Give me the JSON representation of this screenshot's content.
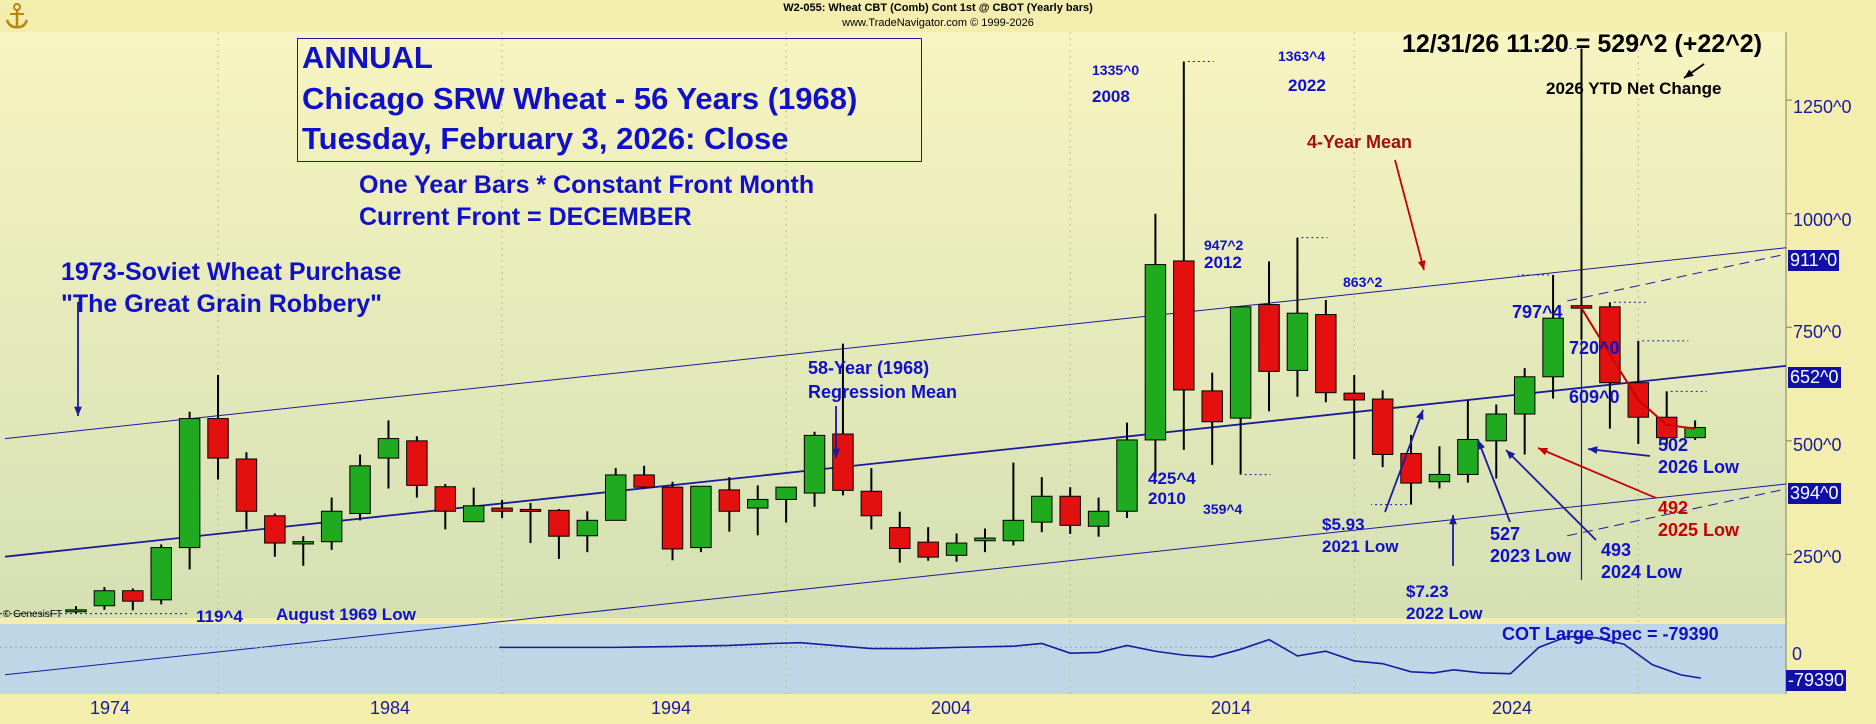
{
  "header": {
    "title": "W2-055: Wheat CBT (Comb) Cont 1st @ CBOT (Yearly bars)",
    "credit": "www.TradeNavigator.com © 1999-2026"
  },
  "title_box": {
    "line1": "ANNUAL",
    "line2": "Chicago SRW Wheat - 56 Years (1968)",
    "line3": "Tuesday, February 3, 2026: Close"
  },
  "subtitle": {
    "line1": "One Year Bars * Constant Front Month",
    "line2": "Current Front = DECEMBER"
  },
  "annotations": {
    "soviet1": "1973-Soviet Wheat Purchase",
    "soviet2": "\"The Great Grain Robbery\"",
    "reg1": "58-Year (1968)",
    "reg2": "Regression Mean",
    "last_quote": "12/31/26 11:20 = 529^2 (+22^2)",
    "ytd": "2026 YTD Net Change",
    "mean4": "4-Year Mean",
    "h2008": "1335^0",
    "h2008y": "2008",
    "h2022": "1363^4",
    "h2022y": "2022",
    "h2012": "947^2",
    "h2012y": "2012",
    "h8632": "863^2",
    "h7974": "797^4",
    "l425": "425^4",
    "l2010": "2010",
    "l359": "359^4",
    "l593": "$5.93",
    "l593y": "2021 Low",
    "l723": "$7.23",
    "l723y": "2022 Low",
    "l527": "527",
    "l527y": "2023 Low",
    "l493": "493",
    "l493y": "2024 Low",
    "l492": "492",
    "l492y": "2025 Low",
    "l502": "502",
    "l502y": "2026 Low",
    "v720": "720^0",
    "v609": "609^0",
    "l119": "119^4",
    "aug69": "August 1969 Low",
    "cot": "COT Large Spec = -79390",
    "copyright": "© GenesisFT"
  },
  "axis": {
    "y_ticks": [
      "1250^0",
      "1000^0",
      "750^0",
      "500^0",
      "250^0"
    ],
    "y_tick_values": [
      1250,
      1000,
      750,
      500,
      250
    ],
    "tags": [
      "911^0",
      "652^0",
      "394^0"
    ],
    "tag_values": [
      911,
      652,
      394
    ],
    "x_ticks": [
      "1974",
      "1984",
      "1994",
      "2004",
      "2014",
      "2024"
    ],
    "x_tick_values": [
      1974,
      1984,
      1994,
      2004,
      2014,
      2024
    ],
    "cot_zero": "0",
    "cot_tag": "-79390"
  },
  "colors": {
    "background": "#f3eeae",
    "up": "#1faa1f",
    "down": "#e41010",
    "line": "#1a1a9e",
    "mean4": "#c80000",
    "panel": "#bfd6e6"
  },
  "chart_data": [
    {
      "type": "candlestick",
      "title": "ANNUAL Chicago SRW Wheat - 56 Years (1968)",
      "xlabel": "",
      "ylabel": "",
      "ylim": [
        110,
        1400
      ],
      "xlim": [
        1966.5,
        2029.2
      ],
      "bars": [
        {
          "year": 1969,
          "o": 128,
          "h": 136,
          "l": 119.5,
          "c": 128
        },
        {
          "year": 1970,
          "o": 137,
          "h": 178,
          "l": 128,
          "c": 170
        },
        {
          "year": 1971,
          "o": 170,
          "h": 175,
          "l": 127,
          "c": 147
        },
        {
          "year": 1972,
          "o": 150,
          "h": 272,
          "l": 140,
          "c": 265
        },
        {
          "year": 1973,
          "o": 265,
          "h": 564,
          "l": 217,
          "c": 549
        },
        {
          "year": 1974,
          "o": 549,
          "h": 645,
          "l": 415,
          "c": 462
        },
        {
          "year": 1975,
          "o": 460,
          "h": 475,
          "l": 305,
          "c": 345
        },
        {
          "year": 1976,
          "o": 335,
          "h": 340,
          "l": 245,
          "c": 275
        },
        {
          "year": 1977,
          "o": 273,
          "h": 290,
          "l": 225,
          "c": 278
        },
        {
          "year": 1978,
          "o": 278,
          "h": 375,
          "l": 260,
          "c": 345
        },
        {
          "year": 1979,
          "o": 340,
          "h": 470,
          "l": 325,
          "c": 445
        },
        {
          "year": 1980,
          "o": 462,
          "h": 545,
          "l": 395,
          "c": 505
        },
        {
          "year": 1981,
          "o": 500,
          "h": 510,
          "l": 375,
          "c": 402
        },
        {
          "year": 1982,
          "o": 399,
          "h": 405,
          "l": 305,
          "c": 345
        },
        {
          "year": 1983,
          "o": 322,
          "h": 397,
          "l": 325,
          "c": 357
        },
        {
          "year": 1984,
          "o": 352,
          "h": 370,
          "l": 330,
          "c": 345
        },
        {
          "year": 1985,
          "o": 349,
          "h": 363,
          "l": 275,
          "c": 348
        },
        {
          "year": 1986,
          "o": 347,
          "h": 350,
          "l": 240,
          "c": 290
        },
        {
          "year": 1987,
          "o": 291,
          "h": 345,
          "l": 255,
          "c": 325
        },
        {
          "year": 1988,
          "o": 325,
          "h": 440,
          "l": 330,
          "c": 425
        },
        {
          "year": 1989,
          "o": 425,
          "h": 445,
          "l": 395,
          "c": 398
        },
        {
          "year": 1990,
          "o": 398,
          "h": 410,
          "l": 237,
          "c": 262
        },
        {
          "year": 1991,
          "o": 265,
          "h": 400,
          "l": 255,
          "c": 400
        },
        {
          "year": 1992,
          "o": 392,
          "h": 420,
          "l": 300,
          "c": 345
        },
        {
          "year": 1993,
          "o": 352,
          "h": 402,
          "l": 292,
          "c": 371
        },
        {
          "year": 1994,
          "o": 371,
          "h": 395,
          "l": 320,
          "c": 398
        },
        {
          "year": 1995,
          "o": 385,
          "h": 520,
          "l": 355,
          "c": 512
        },
        {
          "year": 1996,
          "o": 515,
          "h": 714,
          "l": 380,
          "c": 391
        },
        {
          "year": 1997,
          "o": 389,
          "h": 440,
          "l": 305,
          "c": 335
        },
        {
          "year": 1998,
          "o": 309,
          "h": 344,
          "l": 232,
          "c": 263
        },
        {
          "year": 1999,
          "o": 277,
          "h": 310,
          "l": 236,
          "c": 244
        },
        {
          "year": 2000,
          "o": 248,
          "h": 296,
          "l": 234,
          "c": 275
        },
        {
          "year": 2001,
          "o": 280,
          "h": 307,
          "l": 255,
          "c": 286
        },
        {
          "year": 2002,
          "o": 280,
          "h": 452,
          "l": 270,
          "c": 325
        },
        {
          "year": 2003,
          "o": 321,
          "h": 420,
          "l": 299,
          "c": 378
        },
        {
          "year": 2004,
          "o": 378,
          "h": 398,
          "l": 295,
          "c": 314
        },
        {
          "year": 2005,
          "o": 312,
          "h": 375,
          "l": 289,
          "c": 345
        },
        {
          "year": 2006,
          "o": 345,
          "h": 540,
          "l": 330,
          "c": 502
        },
        {
          "year": 2007,
          "o": 502,
          "h": 1000,
          "l": 420,
          "c": 888
        },
        {
          "year": 2008,
          "o": 896,
          "h": 1335,
          "l": 480,
          "c": 612
        },
        {
          "year": 2009,
          "o": 610,
          "h": 650,
          "l": 447,
          "c": 542
        },
        {
          "year": 2010,
          "o": 550,
          "h": 790,
          "l": 425.5,
          "c": 795
        },
        {
          "year": 2011,
          "o": 800,
          "h": 895,
          "l": 565,
          "c": 653
        },
        {
          "year": 2012,
          "o": 655,
          "h": 947.25,
          "l": 597,
          "c": 781
        },
        {
          "year": 2013,
          "o": 778,
          "h": 810,
          "l": 585,
          "c": 606
        },
        {
          "year": 2014,
          "o": 605,
          "h": 645,
          "l": 460,
          "c": 590
        },
        {
          "year": 2015,
          "o": 592,
          "h": 611,
          "l": 442,
          "c": 470
        },
        {
          "year": 2016,
          "o": 472,
          "h": 513,
          "l": 359.5,
          "c": 407
        },
        {
          "year": 2017,
          "o": 410,
          "h": 488,
          "l": 395,
          "c": 426
        },
        {
          "year": 2018,
          "o": 426,
          "h": 590,
          "l": 408,
          "c": 503
        },
        {
          "year": 2019,
          "o": 500,
          "h": 580,
          "l": 417,
          "c": 559
        },
        {
          "year": 2020,
          "o": 559,
          "h": 660,
          "l": 470,
          "c": 641
        },
        {
          "year": 2021,
          "o": 641,
          "h": 865,
          "l": 593,
          "c": 770
        },
        {
          "year": 2022,
          "o": 797.5,
          "h": 1363.5,
          "l": 723,
          "c": 792
        },
        {
          "year": 2023,
          "o": 795,
          "h": 805,
          "l": 527,
          "c": 628
        },
        {
          "year": 2024,
          "o": 628,
          "h": 720,
          "l": 493,
          "c": 552
        },
        {
          "year": 2025,
          "o": 552,
          "h": 609,
          "l": 492,
          "c": 507
        },
        {
          "year": 2026,
          "o": 507,
          "h": 545,
          "l": 502,
          "c": 529.25
        }
      ],
      "regression_channel": {
        "center": [
          {
            "year": 1966.5,
            "value": 245
          },
          {
            "year": 2029.2,
            "value": 665
          }
        ],
        "inner_upper": [
          {
            "year": 1966.5,
            "value": 505
          },
          {
            "year": 2029.2,
            "value": 925
          }
        ],
        "inner_lower": [
          {
            "year": 1966.5,
            "value": -15
          },
          {
            "year": 2029.2,
            "value": 405
          }
        ],
        "outer_upper": [
          {
            "year": 2021.5,
            "value": 808
          },
          {
            "year": 2029.2,
            "value": 911
          }
        ],
        "outer_lower": [
          {
            "year": 2021.5,
            "value": 291
          },
          {
            "year": 2029.2,
            "value": 394
          }
        ]
      },
      "four_year_mean": [
        {
          "year": 2022,
          "value": 792
        },
        {
          "year": 2023,
          "value": 690
        },
        {
          "year": 2024,
          "value": 590
        },
        {
          "year": 2025,
          "value": 535
        },
        {
          "year": 2026,
          "value": 527
        }
      ]
    },
    {
      "type": "line",
      "title": "COT Large Spec = -79390",
      "ylim": [
        -110000,
        50000
      ],
      "x": [
        1983.9,
        1986,
        1988,
        1990,
        1992,
        1993.5,
        1994.5,
        1995.5,
        1997,
        1998.5,
        2000,
        2002,
        2003,
        2004,
        2005,
        2006,
        2007,
        2008,
        2009,
        2010,
        2011,
        2012,
        2013,
        2014,
        2015,
        2016,
        2016.8,
        2017.5,
        2018.5,
        2019.5,
        2020.5,
        2021.5,
        2022.5,
        2023.5,
        2024.5,
        2025.5,
        2026.2
      ],
      "values": [
        0,
        0,
        0,
        2000,
        5000,
        10000,
        12000,
        6000,
        -3000,
        -3000,
        0,
        3000,
        10000,
        -15000,
        -13000,
        5000,
        -10000,
        -20000,
        -25000,
        -5000,
        20000,
        -22000,
        -10000,
        -35000,
        -42000,
        -63000,
        -66000,
        -58000,
        -66000,
        -68000,
        0,
        28000,
        25000,
        8000,
        -45000,
        -71000,
        -79390
      ]
    }
  ]
}
